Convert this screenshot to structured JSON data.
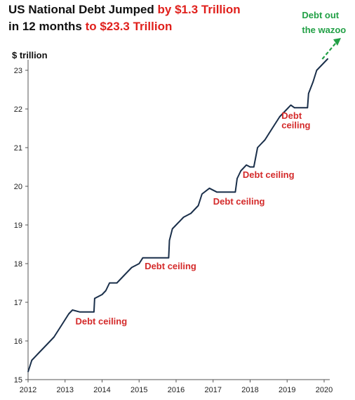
{
  "title": {
    "line1_black": "US National Debt Jumped ",
    "line1_red": "by $1.3 Trillion",
    "line2_black": "in 12 months ",
    "line2_red": "to $23.3 Trillion"
  },
  "colors": {
    "line": "#1a2f4a",
    "red": "#d42a2a",
    "green": "#22a046",
    "axis": "#555555"
  },
  "chart_data": {
    "type": "line",
    "title": "US National Debt Jumped by $1.3 Trillion in 12 months to $23.3 Trillion",
    "ylabel": "$ trillion",
    "xlabel": "",
    "xlim": [
      2012,
      2020.2
    ],
    "ylim": [
      15,
      24
    ],
    "xticks": [
      "2012",
      "2013",
      "2014",
      "2015",
      "2016",
      "2017",
      "2018",
      "2019",
      "2020"
    ],
    "yticks": [
      "15",
      "16",
      "17",
      "18",
      "19",
      "20",
      "21",
      "22",
      "23"
    ],
    "grid": false,
    "series": [
      {
        "name": "",
        "x": [
          2012.0,
          2012.1,
          2012.3,
          2012.5,
          2012.7,
          2012.9,
          2013.1,
          2013.2,
          2013.4,
          2013.6,
          2013.78,
          2013.8,
          2014.0,
          2014.1,
          2014.2,
          2014.4,
          2014.6,
          2014.8,
          2015.0,
          2015.1,
          2015.4,
          2015.6,
          2015.8,
          2015.82,
          2015.9,
          2016.0,
          2016.2,
          2016.4,
          2016.6,
          2016.7,
          2016.9,
          2017.1,
          2017.3,
          2017.6,
          2017.65,
          2017.75,
          2017.9,
          2018.0,
          2018.1,
          2018.2,
          2018.3,
          2018.4,
          2018.6,
          2018.8,
          2019.0,
          2019.1,
          2019.2,
          2019.35,
          2019.55,
          2019.58,
          2019.7,
          2019.8,
          2020.0,
          2020.1
        ],
        "y": [
          15.2,
          15.5,
          15.7,
          15.9,
          16.1,
          16.4,
          16.7,
          16.8,
          16.75,
          16.75,
          16.75,
          17.1,
          17.2,
          17.3,
          17.5,
          17.5,
          17.7,
          17.9,
          18.0,
          18.15,
          18.15,
          18.15,
          18.15,
          18.6,
          18.9,
          19.0,
          19.2,
          19.3,
          19.5,
          19.8,
          19.95,
          19.85,
          19.85,
          19.85,
          20.2,
          20.4,
          20.55,
          20.5,
          20.5,
          21.0,
          21.1,
          21.2,
          21.5,
          21.8,
          22.0,
          22.1,
          22.03,
          22.03,
          22.03,
          22.4,
          22.7,
          23.0,
          23.2,
          23.3
        ]
      }
    ],
    "annotations": [
      {
        "text": "Debt ceiling",
        "x": 2013.28,
        "y": 16.43,
        "color": "red"
      },
      {
        "text": "Debt ceiling",
        "x": 2015.15,
        "y": 17.85,
        "color": "red"
      },
      {
        "text": "Debt ceiling",
        "x": 2017.0,
        "y": 19.53,
        "color": "red"
      },
      {
        "text": "Debt ceiling",
        "x": 2017.8,
        "y": 20.22,
        "color": "red"
      },
      {
        "text": "Debt",
        "x": 2018.85,
        "y": 21.75,
        "color": "red"
      },
      {
        "text": "ceiling",
        "x": 2018.85,
        "y": 21.5,
        "color": "red"
      },
      {
        "text": "Debt out",
        "x": 2019.4,
        "y": 24.2,
        "color": "green"
      },
      {
        "text": "the wazoo",
        "x": 2019.4,
        "y": 23.9,
        "color": "green"
      }
    ]
  }
}
